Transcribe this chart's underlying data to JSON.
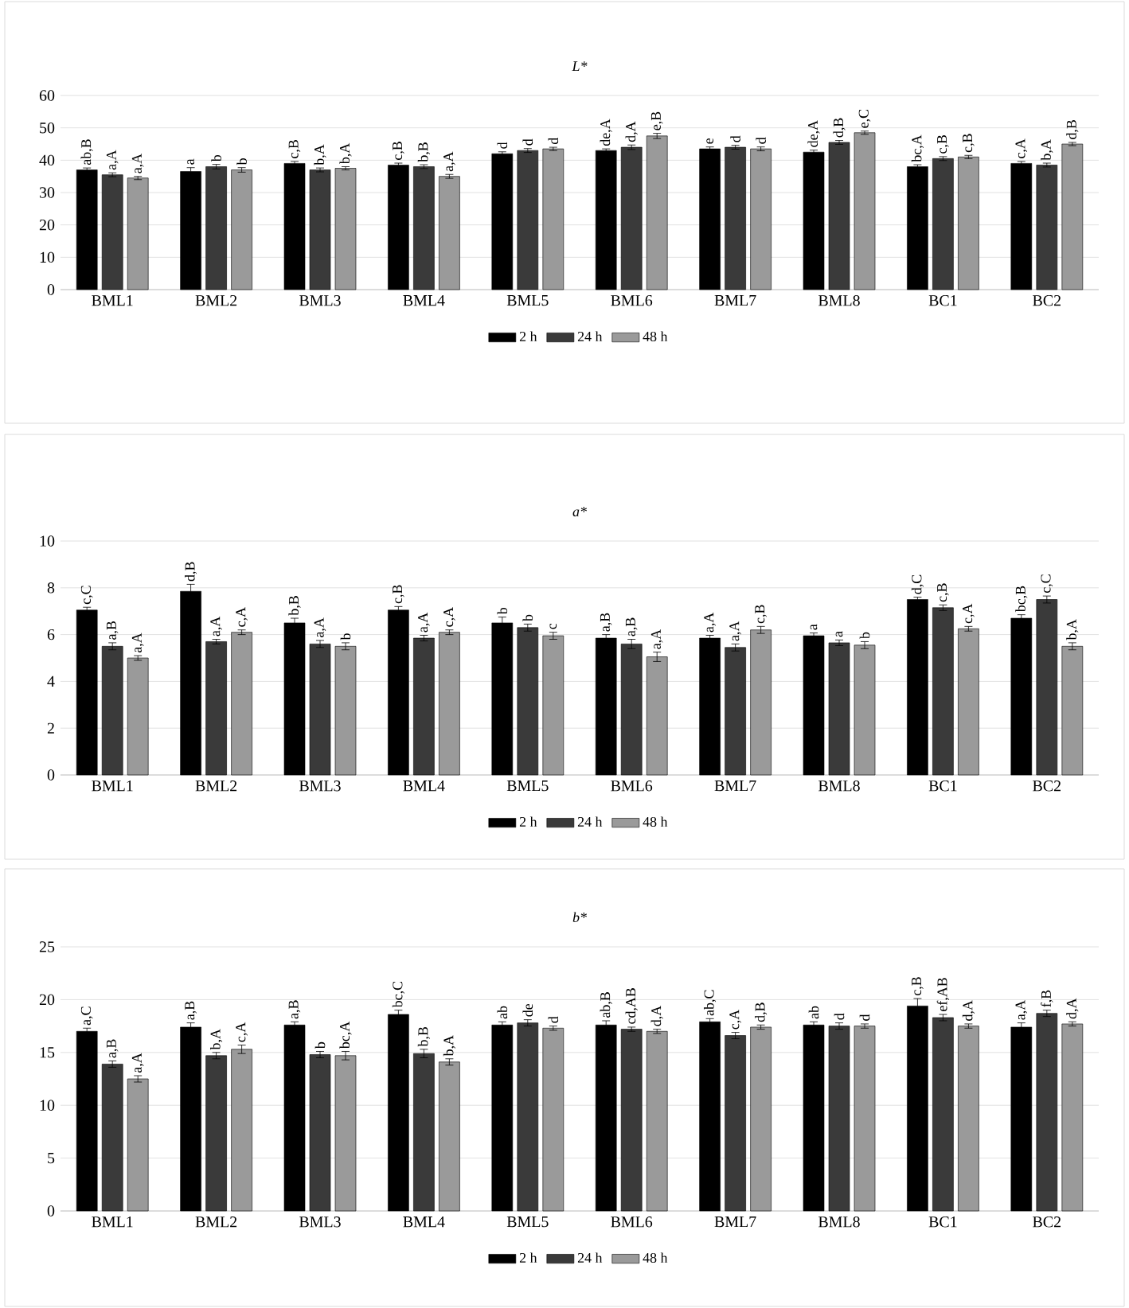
{
  "chart_data": [
    {
      "type": "bar",
      "title": "L*",
      "categories": [
        "BML1",
        "BML2",
        "BML3",
        "BML4",
        "BML5",
        "BML6",
        "BML7",
        "BML8",
        "BC1",
        "BC2"
      ],
      "ylim": [
        0,
        60
      ],
      "yticks": [
        0,
        10,
        20,
        30,
        40,
        50,
        60
      ],
      "grid": "y",
      "legend": "bottom",
      "series": [
        {
          "name": "2 h",
          "color": "#000000",
          "values": [
            37,
            36.5,
            39,
            38.5,
            42,
            43,
            43.5,
            42.5,
            38,
            39
          ],
          "errors": [
            0.6,
            1.2,
            0.6,
            0.6,
            0.6,
            0.5,
            0.6,
            0.6,
            0.6,
            0.6
          ],
          "value_labels": [
            "ab,B",
            "a",
            "c,B",
            "c,B",
            "d",
            "de,A",
            "e",
            "de,A",
            "bc,A",
            "c,A"
          ]
        },
        {
          "name": "24 h",
          "color": "#3a3a3a",
          "values": [
            35.5,
            38,
            37,
            38,
            43,
            44,
            44,
            45.5,
            40.5,
            38.5
          ],
          "errors": [
            0.6,
            0.7,
            0.6,
            0.6,
            0.6,
            0.7,
            0.6,
            0.6,
            0.6,
            0.6
          ],
          "value_labels": [
            "a,A",
            "b",
            "b,A",
            "b,B",
            "d",
            "d,A",
            "d",
            "d,B",
            "c,B",
            "b,A"
          ]
        },
        {
          "name": "48 h",
          "color": "#9a9a9a",
          "values": [
            34.5,
            37,
            37.5,
            35,
            43.5,
            47.5,
            43.5,
            48.5,
            41,
            45
          ],
          "errors": [
            0.5,
            0.7,
            0.5,
            0.6,
            0.5,
            0.8,
            0.6,
            0.5,
            0.5,
            0.5
          ],
          "value_labels": [
            "a,A",
            "b",
            "b,A",
            "a,A",
            "d",
            "e,B",
            "d",
            "e,C",
            "c,B",
            "d,B"
          ]
        }
      ]
    },
    {
      "type": "bar",
      "title": "a*",
      "categories": [
        "BML1",
        "BML2",
        "BML3",
        "BML4",
        "BML5",
        "BML6",
        "BML7",
        "BML8",
        "BC1",
        "BC2"
      ],
      "ylim": [
        0,
        10
      ],
      "yticks": [
        0,
        2,
        4,
        6,
        8,
        10
      ],
      "grid": "y",
      "legend": "bottom",
      "series": [
        {
          "name": "2 h",
          "color": "#000000",
          "values": [
            7.05,
            7.85,
            6.5,
            7.05,
            6.5,
            5.85,
            5.85,
            5.95,
            7.5,
            6.7
          ],
          "errors": [
            0.12,
            0.3,
            0.2,
            0.15,
            0.25,
            0.15,
            0.12,
            0.12,
            0.1,
            0.15
          ],
          "value_labels": [
            "c,C",
            "d,B",
            "b,B",
            "c,B",
            "b",
            "a,B",
            "a,A",
            "a",
            "d,C",
            "bc,B"
          ]
        },
        {
          "name": "24 h",
          "color": "#3a3a3a",
          "values": [
            5.5,
            5.7,
            5.6,
            5.85,
            6.3,
            5.6,
            5.45,
            5.65,
            7.15,
            7.5
          ],
          "errors": [
            0.15,
            0.1,
            0.15,
            0.12,
            0.15,
            0.2,
            0.15,
            0.12,
            0.12,
            0.15
          ],
          "value_labels": [
            "a,B",
            "a,A",
            "a,A",
            "a,A",
            "b",
            "a,B",
            "a,A",
            "a",
            "c,B",
            "c,C"
          ]
        },
        {
          "name": "48 h",
          "color": "#9a9a9a",
          "values": [
            5.0,
            6.1,
            5.5,
            6.1,
            5.95,
            5.05,
            6.2,
            5.55,
            6.25,
            5.5
          ],
          "errors": [
            0.1,
            0.1,
            0.15,
            0.1,
            0.15,
            0.2,
            0.15,
            0.15,
            0.1,
            0.15
          ],
          "value_labels": [
            "a,A",
            "c,A",
            "b",
            "c,A",
            "c",
            "a,A",
            "c,B",
            "b",
            "c,A",
            "b,A"
          ]
        }
      ]
    },
    {
      "type": "bar",
      "title": "b*",
      "categories": [
        "BML1",
        "BML2",
        "BML3",
        "BML4",
        "BML5",
        "BML6",
        "BML7",
        "BML8",
        "BC1",
        "BC2"
      ],
      "ylim": [
        0,
        25
      ],
      "yticks": [
        0,
        5,
        10,
        15,
        20,
        25
      ],
      "grid": "y",
      "legend": "bottom",
      "series": [
        {
          "name": "2 h",
          "color": "#000000",
          "values": [
            17,
            17.4,
            17.6,
            18.6,
            17.6,
            17.6,
            17.9,
            17.6,
            19.4,
            17.4
          ],
          "errors": [
            0.3,
            0.4,
            0.3,
            0.4,
            0.3,
            0.4,
            0.3,
            0.3,
            0.7,
            0.4
          ],
          "value_labels": [
            "a,C",
            "a,B",
            "a,B",
            "bc,C",
            "ab",
            "ab,B",
            "ab,C",
            "ab",
            "c,B",
            "a,A"
          ]
        },
        {
          "name": "24 h",
          "color": "#3a3a3a",
          "values": [
            13.9,
            14.7,
            14.8,
            14.9,
            17.8,
            17.2,
            16.6,
            17.5,
            18.3,
            18.7
          ],
          "errors": [
            0.3,
            0.3,
            0.3,
            0.4,
            0.3,
            0.2,
            0.3,
            0.3,
            0.3,
            0.3
          ],
          "value_labels": [
            "a,B",
            "b,A",
            "b",
            "b,B",
            "de",
            "cd,AB",
            "c,A",
            "d",
            "ef,AB",
            "f,B"
          ]
        },
        {
          "name": "48 h",
          "color": "#9a9a9a",
          "values": [
            12.5,
            15.3,
            14.7,
            14.1,
            17.3,
            17.0,
            17.4,
            17.5,
            17.5,
            17.7
          ],
          "errors": [
            0.3,
            0.4,
            0.4,
            0.3,
            0.2,
            0.2,
            0.2,
            0.2,
            0.2,
            0.2
          ],
          "value_labels": [
            "a,A",
            "c,A",
            "bc,A",
            "b,A",
            "d",
            "d,A",
            "d,B",
            "d",
            "d,A",
            "d,A"
          ]
        }
      ]
    }
  ]
}
